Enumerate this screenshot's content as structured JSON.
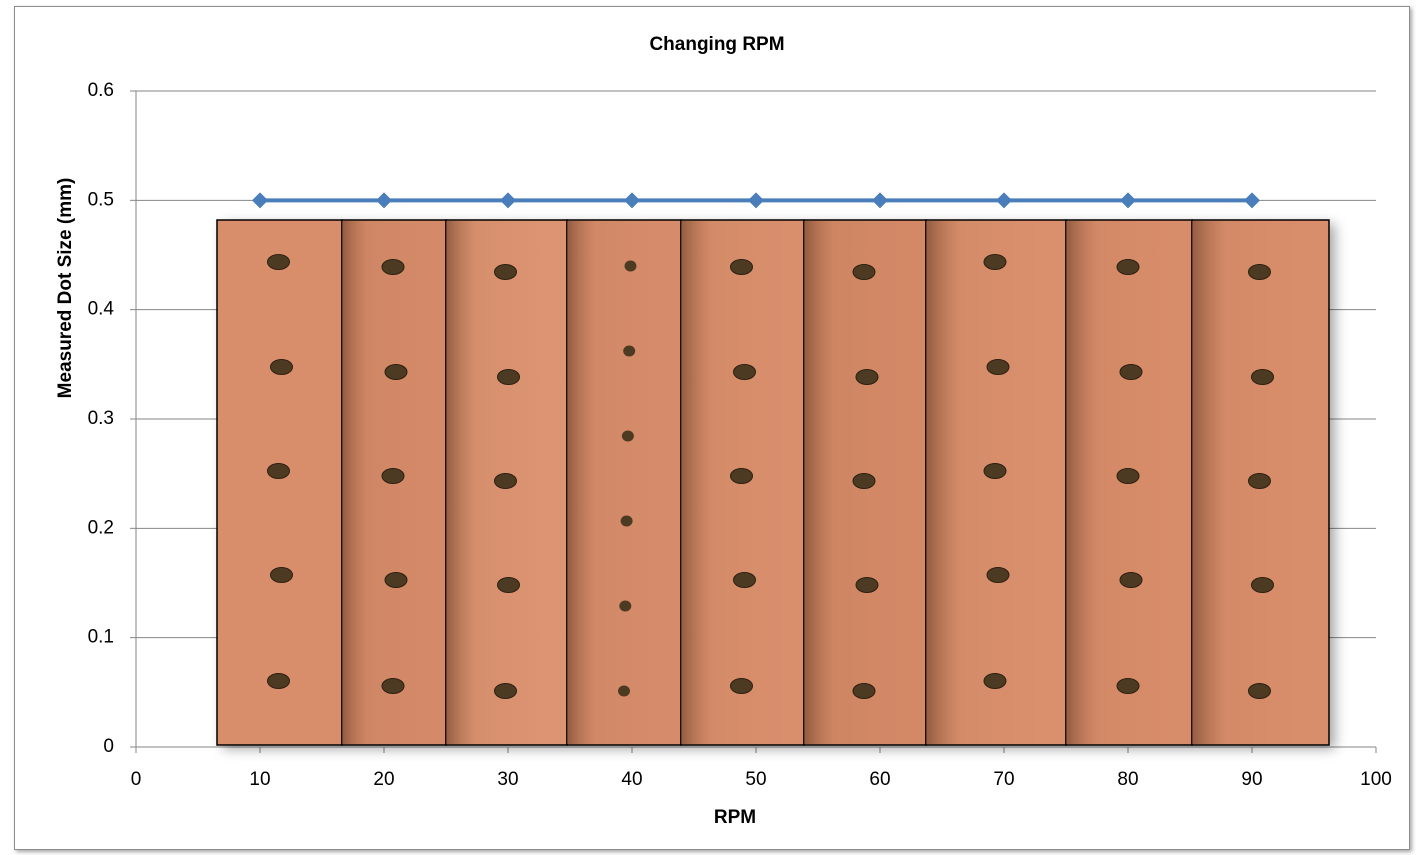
{
  "chart_data": {
    "type": "line",
    "title": "Changing RPM",
    "x_label": "RPM",
    "y_label": "Measured Dot Size (mm)",
    "x": [
      10,
      20,
      30,
      40,
      50,
      60,
      70,
      80,
      90
    ],
    "series": [
      {
        "name": "Measured Dot Size",
        "color": "#4a7ebb",
        "values": [
          0.5,
          0.5,
          0.5,
          0.5,
          0.5,
          0.5,
          0.5,
          0.5,
          0.5
        ]
      }
    ],
    "xlim": [
      0,
      100
    ],
    "xticks": [
      0,
      10,
      20,
      30,
      40,
      50,
      60,
      70,
      80,
      90,
      100
    ],
    "ylim": [
      0,
      0.6
    ],
    "yticks": [
      0,
      0.1,
      0.2,
      0.3,
      0.4,
      0.5,
      0.6
    ],
    "grid": true
  }
}
